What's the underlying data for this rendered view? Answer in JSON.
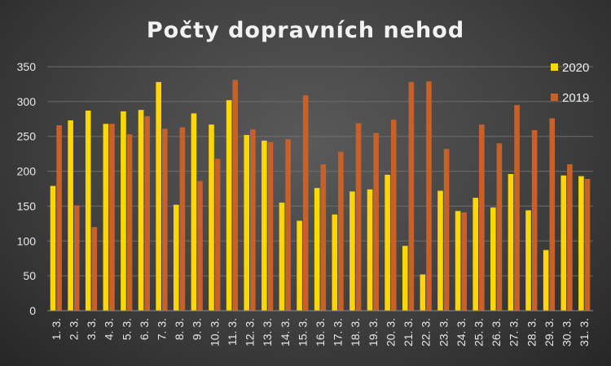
{
  "chart_data": {
    "type": "bar",
    "title": "Počty dopravních nehod",
    "xlabel": "",
    "ylabel": "",
    "ylim": [
      0,
      350
    ],
    "yticks": [
      0,
      50,
      100,
      150,
      200,
      250,
      300,
      350
    ],
    "grid": true,
    "legend_position": "right",
    "categories": [
      "1. 3.",
      "2. 3.",
      "3. 3.",
      "4. 3.",
      "5. 3.",
      "6. 3.",
      "7. 3.",
      "8. 3.",
      "9. 3.",
      "10. 3.",
      "11. 3.",
      "12. 3.",
      "13. 3.",
      "14. 3.",
      "15. 3.",
      "16. 3.",
      "17. 3.",
      "18. 3.",
      "19. 3.",
      "20. 3.",
      "21. 3.",
      "22. 3.",
      "23. 3.",
      "24. 3.",
      "25. 3.",
      "26. 3.",
      "27. 3.",
      "28. 3.",
      "29. 3.",
      "30. 3.",
      "31. 3."
    ],
    "series": [
      {
        "name": "2020",
        "color": "#FFD700",
        "values": [
          179,
          273,
          287,
          268,
          286,
          288,
          328,
          152,
          283,
          267,
          302,
          252,
          244,
          155,
          129,
          176,
          138,
          171,
          174,
          195,
          93,
          52,
          172,
          143,
          162,
          148,
          196,
          144,
          87,
          194,
          193
        ]
      },
      {
        "name": "2019",
        "color": "#C8602A",
        "values": [
          266,
          151,
          120,
          268,
          253,
          279,
          261,
          263,
          186,
          218,
          331,
          260,
          242,
          246,
          309,
          210,
          228,
          269,
          255,
          274,
          328,
          329,
          232,
          141,
          267,
          240,
          295,
          259,
          276,
          210,
          189
        ]
      }
    ]
  }
}
